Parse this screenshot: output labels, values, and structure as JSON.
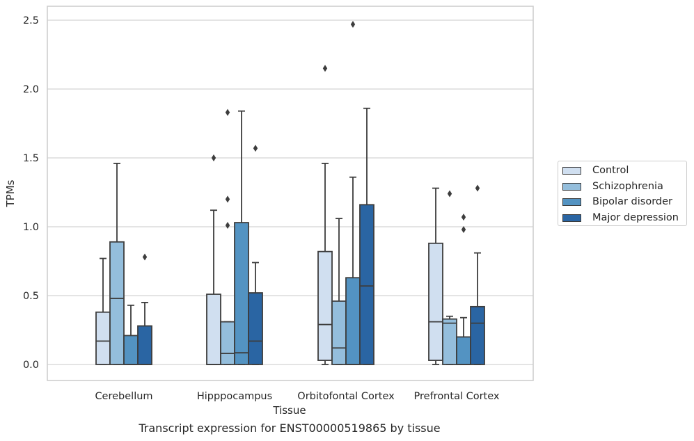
{
  "chart_data": {
    "type": "box",
    "xlabel": "Tissue",
    "ylabel": "TPMs",
    "caption": "Transcript expression for ENST00000519865 by tissue",
    "ylim": [
      -0.12,
      2.6
    ],
    "yticks": [
      "0.0",
      "0.5",
      "1.0",
      "1.5",
      "2.0",
      "2.5"
    ],
    "ytick_values": [
      0,
      0.5,
      1.0,
      1.5,
      2.0,
      2.5
    ],
    "grid": "horizontal",
    "legend_position": "right",
    "categories": [
      "Cerebellum",
      "Hipppocampus",
      "Orbitofontal Cortex",
      "Prefrontal Cortex"
    ],
    "series": [
      {
        "name": "Control",
        "color": "#d0dff0",
        "boxes": [
          {
            "whislo": 0,
            "q1": 0,
            "med": 0.17,
            "q3": 0.38,
            "whishi": 0.77,
            "fliers": []
          },
          {
            "whislo": 0,
            "q1": 0,
            "med": 0,
            "q3": 0.51,
            "whishi": 1.12,
            "fliers": [
              1.5
            ]
          },
          {
            "whislo": 0,
            "q1": 0.03,
            "med": 0.29,
            "q3": 0.82,
            "whishi": 1.46,
            "fliers": [
              2.15
            ]
          },
          {
            "whislo": 0,
            "q1": 0.03,
            "med": 0.31,
            "q3": 0.88,
            "whishi": 1.28,
            "fliers": []
          }
        ]
      },
      {
        "name": "Schizophrenia",
        "color": "#94bedc",
        "boxes": [
          {
            "whislo": 0,
            "q1": 0,
            "med": 0.48,
            "q3": 0.89,
            "whishi": 1.46,
            "fliers": []
          },
          {
            "whislo": 0,
            "q1": 0,
            "med": 0.08,
            "q3": 0.31,
            "whishi": 0.31,
            "fliers": [
              1.01,
              1.2,
              1.83
            ]
          },
          {
            "whislo": 0,
            "q1": 0,
            "med": 0.12,
            "q3": 0.46,
            "whishi": 1.06,
            "fliers": []
          },
          {
            "whislo": 0,
            "q1": 0,
            "med": 0.3,
            "q3": 0.33,
            "whishi": 0.35,
            "fliers": [
              1.24
            ]
          }
        ]
      },
      {
        "name": "Bipolar disorder",
        "color": "#5393c2",
        "boxes": [
          {
            "whislo": 0,
            "q1": 0,
            "med": 0,
            "q3": 0.21,
            "whishi": 0.43,
            "fliers": []
          },
          {
            "whislo": 0,
            "q1": 0,
            "med": 0.085,
            "q3": 1.03,
            "whishi": 1.84,
            "fliers": []
          },
          {
            "whislo": 0,
            "q1": 0,
            "med": 0,
            "q3": 0.63,
            "whishi": 1.36,
            "fliers": [
              2.47
            ]
          },
          {
            "whislo": 0,
            "q1": 0,
            "med": 0,
            "q3": 0.2,
            "whishi": 0.34,
            "fliers": [
              0.98,
              1.07
            ]
          }
        ]
      },
      {
        "name": "Major depression",
        "color": "#2a65a3",
        "boxes": [
          {
            "whislo": 0,
            "q1": 0,
            "med": 0,
            "q3": 0.28,
            "whishi": 0.45,
            "fliers": [
              0.78
            ]
          },
          {
            "whislo": 0,
            "q1": 0,
            "med": 0.17,
            "q3": 0.52,
            "whishi": 0.74,
            "fliers": [
              1.57
            ]
          },
          {
            "whislo": 0,
            "q1": 0,
            "med": 0.57,
            "q3": 1.16,
            "whishi": 1.86,
            "fliers": []
          },
          {
            "whislo": 0,
            "q1": 0,
            "med": 0.3,
            "q3": 0.42,
            "whishi": 0.81,
            "fliers": [
              1.28
            ]
          }
        ]
      }
    ]
  }
}
